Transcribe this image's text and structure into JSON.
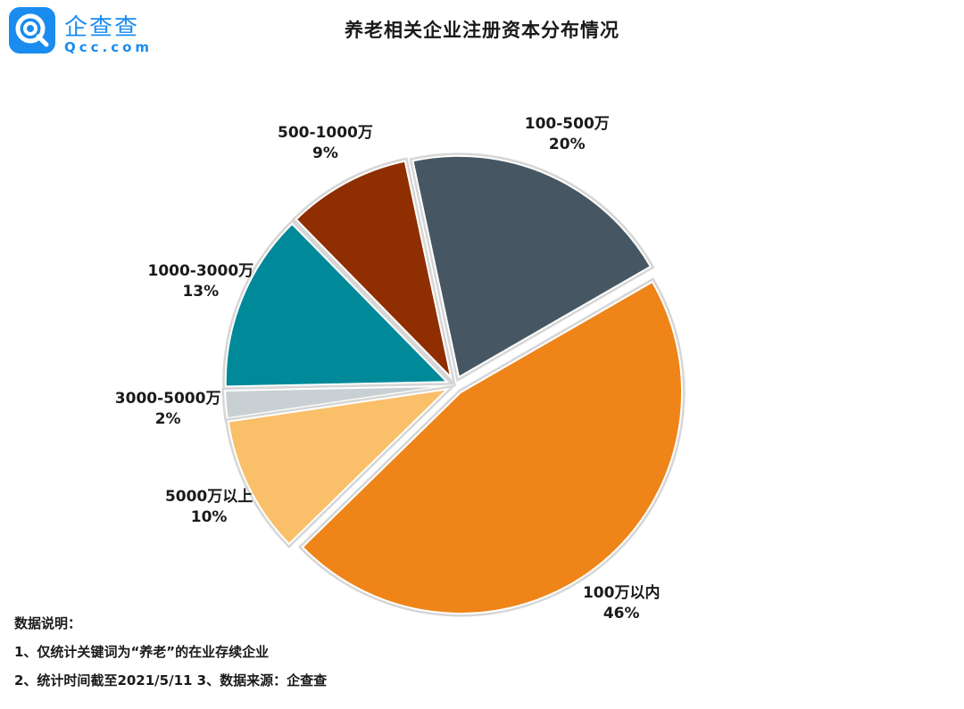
{
  "logo": {
    "name": "企查查",
    "domain": "Qcc.com"
  },
  "title": "养老相关企业注册资本分布情况",
  "chart_data": {
    "type": "pie",
    "title": "养老相关企业注册资本分布情况",
    "slices": [
      {
        "label": "100-500万",
        "value": 20,
        "pct": "20%",
        "color": "#465763"
      },
      {
        "label": "500-1000万",
        "value": 9,
        "pct": "9%",
        "color": "#8f2e00"
      },
      {
        "label": "1000-3000万",
        "value": 13,
        "pct": "13%",
        "color": "#008a99"
      },
      {
        "label": "3000-5000万",
        "value": 2,
        "pct": "2%",
        "color": "#c8d0d3"
      },
      {
        "label": "5000万以上",
        "value": 10,
        "pct": "10%",
        "color": "#f9bf69"
      },
      {
        "label": "100万以内",
        "value": 46,
        "pct": "46%",
        "color": "#ef8419"
      }
    ],
    "exploded": true
  },
  "notes": {
    "heading": "数据说明：",
    "line1": "1、仅统计关键词为“养老”的在业存续企业",
    "line2": "2、统计时间截至2021/5/11   3、数据来源：企查查"
  }
}
